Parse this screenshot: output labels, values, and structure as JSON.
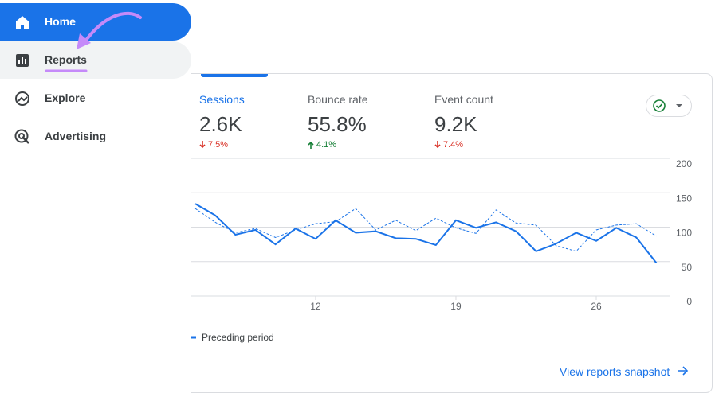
{
  "nav": {
    "items": [
      {
        "label": "Home"
      },
      {
        "label": "Reports"
      },
      {
        "label": "Explore"
      },
      {
        "label": "Advertising"
      }
    ]
  },
  "metrics": [
    {
      "label": "Sessions",
      "value": "2.6K",
      "change": "7.5%",
      "direction": "down"
    },
    {
      "label": "Bounce rate",
      "value": "55.8%",
      "change": "4.1%",
      "direction": "up"
    },
    {
      "label": "Event count",
      "value": "9.2K",
      "change": "7.4%",
      "direction": "down"
    }
  ],
  "chart_data": {
    "type": "line",
    "x": [
      6,
      7,
      8,
      9,
      10,
      11,
      12,
      13,
      14,
      15,
      16,
      17,
      18,
      19,
      20,
      21,
      22,
      23,
      24,
      25,
      26,
      27,
      28,
      29
    ],
    "xlim": [
      5.8,
      29.3
    ],
    "xticks": [
      12,
      19,
      26
    ],
    "ylim": [
      0,
      200
    ],
    "yticks": [
      0,
      50,
      100,
      150,
      200
    ],
    "grid": true,
    "series": [
      {
        "color": "#1a73e8",
        "dashed": false,
        "values": [
          134,
          117,
          89,
          96,
          75,
          98,
          83,
          110,
          92,
          94,
          84,
          83,
          74,
          110,
          99,
          107,
          94,
          65,
          76,
          92,
          80,
          99,
          85,
          48
        ]
      },
      {
        "name": "Preceding period",
        "color": "#1a73e8",
        "dashed": true,
        "values": [
          127,
          107,
          92,
          98,
          85,
          96,
          105,
          108,
          127,
          96,
          110,
          95,
          113,
          99,
          91,
          125,
          106,
          103,
          73,
          65,
          96,
          103,
          105,
          87
        ]
      }
    ]
  },
  "link": "View reports snapshot"
}
